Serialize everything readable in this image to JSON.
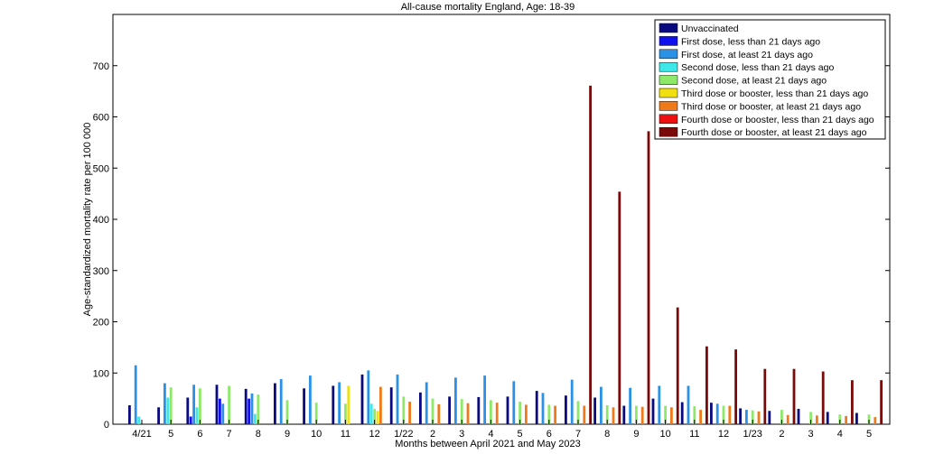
{
  "chart_data": {
    "type": "bar",
    "title": "All-cause mortality England, Age: 18-39",
    "xlabel": "Months between April 2021 and May 2023",
    "ylabel": "Age-standardized mortality rate per 100 000",
    "ylim": [
      0,
      800
    ],
    "yticks": [
      0,
      100,
      200,
      300,
      400,
      500,
      600,
      700
    ],
    "grid": false,
    "legend_position": "top-right",
    "categories": [
      "4/21",
      "5",
      "6",
      "7",
      "8",
      "9",
      "10",
      "11",
      "12",
      "1/22",
      "2",
      "3",
      "4",
      "5",
      "6",
      "7",
      "8",
      "9",
      "10",
      "11",
      "12",
      "1/23",
      "2",
      "3",
      "4",
      "5"
    ],
    "series": [
      {
        "name": "Unvaccinated",
        "color": "#0a0a80",
        "values": [
          37,
          33,
          52,
          77,
          69,
          80,
          70,
          75,
          97,
          72,
          62,
          54,
          53,
          54,
          65,
          56,
          52,
          36,
          50,
          43,
          42,
          31,
          26,
          30,
          24,
          22
        ]
      },
      {
        "name": "First dose, less than 21 days ago",
        "color": "#1010ee",
        "values": [
          null,
          null,
          15,
          50,
          50,
          null,
          null,
          null,
          null,
          null,
          null,
          null,
          null,
          null,
          null,
          null,
          null,
          null,
          null,
          null,
          null,
          null,
          null,
          null,
          null,
          null
        ]
      },
      {
        "name": "First dose, at least 21 days ago",
        "color": "#2a92e6",
        "values": [
          115,
          80,
          77,
          40,
          60,
          88,
          95,
          82,
          105,
          97,
          82,
          91,
          95,
          84,
          61,
          87,
          73,
          71,
          75,
          75,
          40,
          28,
          null,
          null,
          null,
          null
        ]
      },
      {
        "name": "Second dose, less than 21 days ago",
        "color": "#3ee8e8",
        "values": [
          15,
          52,
          33,
          null,
          20,
          null,
          null,
          null,
          40,
          null,
          null,
          null,
          null,
          null,
          null,
          null,
          null,
          null,
          null,
          null,
          null,
          null,
          null,
          null,
          null,
          null
        ]
      },
      {
        "name": "Second dose, at least 21 days ago",
        "color": "#8ee86a",
        "values": [
          null,
          72,
          70,
          75,
          58,
          47,
          42,
          40,
          30,
          54,
          50,
          49,
          47,
          44,
          38,
          45,
          37,
          36,
          36,
          35,
          36,
          27,
          28,
          24,
          19,
          19
        ]
      },
      {
        "name": "Third dose or booster, less than 21 days ago",
        "color": "#f0e010",
        "values": [
          null,
          null,
          null,
          null,
          null,
          null,
          null,
          75,
          26,
          null,
          null,
          null,
          null,
          null,
          null,
          null,
          null,
          null,
          null,
          null,
          null,
          null,
          null,
          null,
          null,
          null
        ]
      },
      {
        "name": "Third dose or booster, at least 21 days ago",
        "color": "#f07a1a",
        "values": [
          null,
          null,
          null,
          null,
          null,
          null,
          null,
          null,
          73,
          44,
          39,
          41,
          42,
          38,
          36,
          36,
          33,
          34,
          33,
          28,
          36,
          25,
          18,
          17,
          16,
          14
        ]
      },
      {
        "name": "Fourth dose or booster, less than 21 days ago",
        "color": "#ee1010",
        "values": [
          null,
          null,
          null,
          null,
          null,
          null,
          null,
          null,
          null,
          null,
          null,
          null,
          null,
          null,
          null,
          null,
          null,
          null,
          null,
          null,
          null,
          null,
          null,
          null,
          null,
          null
        ]
      },
      {
        "name": "Fourth dose or booster, at least 21 days ago",
        "color": "#7a0a0a",
        "values": [
          null,
          null,
          null,
          null,
          null,
          null,
          null,
          null,
          null,
          null,
          null,
          null,
          null,
          null,
          null,
          661,
          454,
          572,
          228,
          152,
          146,
          108,
          108,
          103,
          86,
          86
        ]
      }
    ]
  }
}
